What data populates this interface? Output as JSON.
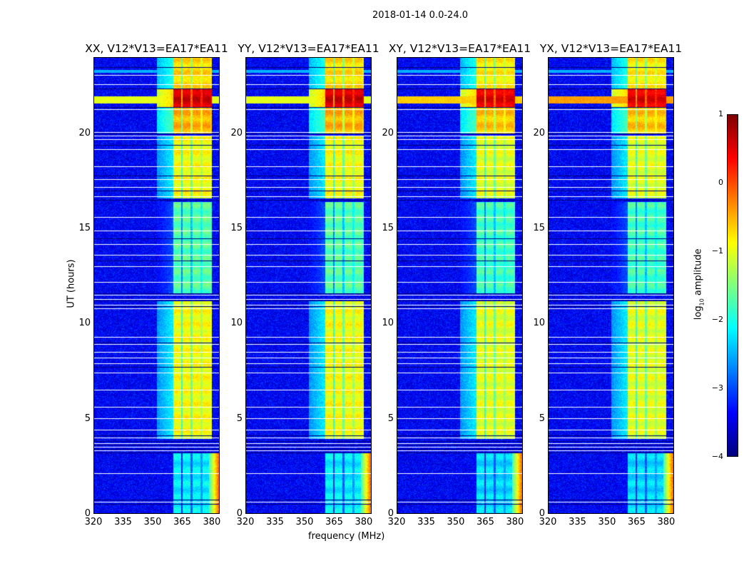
{
  "suptitle": "2018-01-14 0.0-24.0",
  "colors": {
    "cmap": "jet",
    "flag_white": "#ffffff",
    "flag_black": "#000000"
  },
  "chart_data": {
    "type": "heatmap",
    "title": "2018-01-14 0.0-24.0",
    "xlabel": "frequency (MHz)",
    "ylabel": "UT (hours)",
    "xlim": [
      320,
      384
    ],
    "ylim": [
      0,
      24
    ],
    "xticks": [
      "320",
      "335",
      "350",
      "365",
      "380"
    ],
    "xtick_values": [
      320,
      335,
      350,
      365,
      380
    ],
    "yticks": [
      "0",
      "5",
      "10",
      "15",
      "20"
    ],
    "ytick_values": [
      0,
      5,
      10,
      15,
      20
    ],
    "colorbar": {
      "label_main": "log",
      "label_sub": "10",
      "label_rest": " amplitude",
      "range": [
        -4,
        1
      ],
      "ticks": [
        "1",
        "0",
        "−1",
        "−2",
        "−3",
        "−4"
      ],
      "tick_values": [
        1,
        0,
        -1,
        -2,
        -3,
        -4
      ]
    },
    "panels": [
      {
        "title": "XX, V12*V13=EA17*EA11",
        "pol_offset": 0.0,
        "broadband_rfi": 1.0
      },
      {
        "title": "YY, V12*V13=EA17*EA11",
        "pol_offset": 0.0,
        "broadband_rfi": 1.0
      },
      {
        "title": "XY, V12*V13=EA17*EA11",
        "pol_offset": -0.1,
        "broadband_rfi": 0.7
      },
      {
        "title": "YX, V12*V13=EA17*EA11",
        "pol_offset": -0.1,
        "broadband_rfi": 0.5
      }
    ],
    "background_level": -3.4,
    "bands_mhz": [
      [
        360.5,
        364.5
      ],
      [
        365.5,
        369.5
      ],
      [
        370.5,
        374.5
      ],
      [
        375.5,
        379.5
      ]
    ],
    "time_segments": [
      {
        "t": [
          0,
          3.2
        ],
        "band_level": -2.2
      },
      {
        "t": [
          3.9,
          11.2
        ],
        "band_level": -0.9
      },
      {
        "t": [
          11.6,
          16.4
        ],
        "band_level": -1.7
      },
      {
        "t": [
          16.6,
          19.9
        ],
        "band_level": -0.9
      },
      {
        "t": [
          20.0,
          21.4
        ],
        "band_level": -0.5
      },
      {
        "t": [
          21.4,
          22.4
        ],
        "band_level": 0.6
      },
      {
        "t": [
          22.4,
          24
        ],
        "band_level": -0.7
      }
    ],
    "flag_white_hours": [
      0.6,
      2.1,
      3.3,
      3.5,
      3.7,
      4.0,
      4.4,
      5.0,
      5.6,
      6.5,
      7.4,
      7.9,
      8.2,
      8.5,
      8.9,
      9.3,
      10.8,
      11.0,
      11.3,
      11.5,
      12.2,
      13.0,
      13.6,
      14.2,
      14.9,
      15.6,
      16.7,
      17.2,
      17.6,
      18.3,
      19.2,
      19.7,
      19.9,
      20.1,
      21.3,
      22.6,
      23.1
    ],
    "flag_black_hours": [
      0.5,
      0.7,
      3.2,
      3.4,
      3.6,
      3.8,
      4.1,
      7.7,
      9.0,
      10.9,
      11.2,
      11.6,
      13.3,
      14.5,
      16.5,
      17.0,
      17.8,
      19.4,
      20.0,
      21.4,
      22.4,
      23.5
    ]
  }
}
